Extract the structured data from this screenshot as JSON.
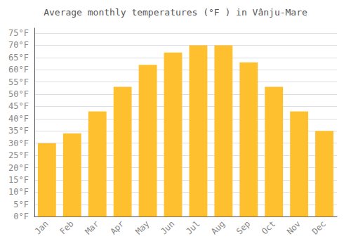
{
  "chart_data": {
    "type": "bar",
    "title": "Average monthly temperatures (°F ) in Vânju-Mare",
    "categories": [
      "Jan",
      "Feb",
      "Mar",
      "Apr",
      "May",
      "Jun",
      "Jul",
      "Aug",
      "Sep",
      "Oct",
      "Nov",
      "Dec"
    ],
    "values": [
      30,
      34,
      43,
      53,
      62,
      67,
      70,
      70,
      63,
      53,
      43,
      35
    ],
    "color": "#FFC030",
    "ylim": [
      0,
      77
    ],
    "yticks": [
      {
        "value": 0,
        "label": "0°F"
      },
      {
        "value": 5,
        "label": "5°F"
      },
      {
        "value": 10,
        "label": "10°F"
      },
      {
        "value": 15,
        "label": "15°F"
      },
      {
        "value": 20,
        "label": "20°F"
      },
      {
        "value": 25,
        "label": "25°F"
      },
      {
        "value": 30,
        "label": "30°F"
      },
      {
        "value": 35,
        "label": "35°F"
      },
      {
        "value": 40,
        "label": "40°F"
      },
      {
        "value": 45,
        "label": "45°F"
      },
      {
        "value": 50,
        "label": "50°F"
      },
      {
        "value": 55,
        "label": "55°F"
      },
      {
        "value": 60,
        "label": "60°F"
      },
      {
        "value": 65,
        "label": "65°F"
      },
      {
        "value": 70,
        "label": "70°F"
      },
      {
        "value": 75,
        "label": "75°F"
      }
    ],
    "grid": true
  }
}
